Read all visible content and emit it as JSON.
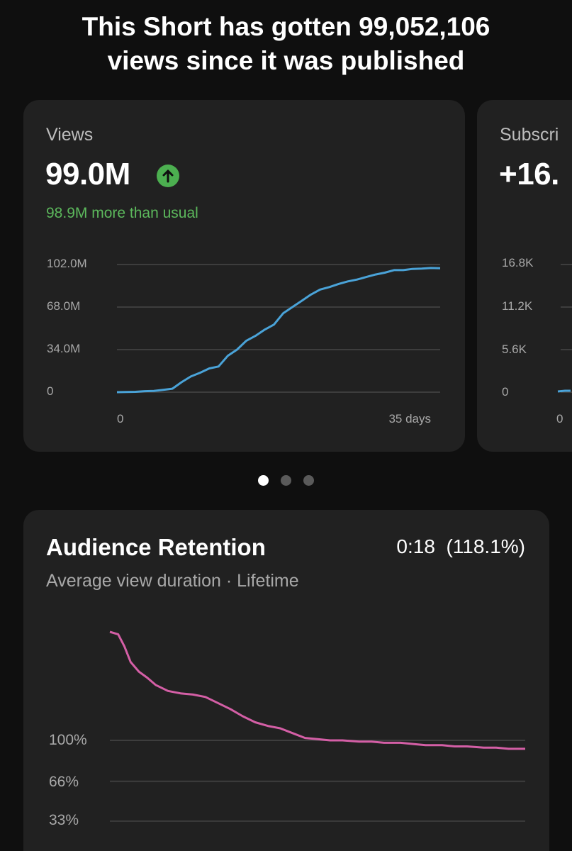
{
  "headline": {
    "line1": "This Short has gotten 99,052,106",
    "line2": "views since it was published"
  },
  "views_card": {
    "label": "Views",
    "value": "99.0M",
    "trend_icon": "arrow-up-icon",
    "comparison": "98.9M more than usual",
    "accent_color": "#4caf50"
  },
  "subscribers_card": {
    "label": "Subscri",
    "value": "+16.",
    "y_ticks": [
      "16.8K",
      "11.2K",
      "5.6K",
      "0"
    ],
    "x_start": "0"
  },
  "carousel": {
    "pages": 3,
    "active_index": 0
  },
  "retention_card": {
    "title": "Audience Retention",
    "value": "0:18  (118.1%)",
    "subtitle": "Average view duration · Lifetime",
    "y_ticks": [
      "100%",
      "66%",
      "33%"
    ]
  },
  "chart_data": [
    {
      "type": "line",
      "y_tick_labels": [
        "102.0M",
        "68.0M",
        "34.0M",
        "0"
      ],
      "y_ticks": [
        102,
        68,
        34,
        0
      ],
      "x_tick_labels": [
        "0",
        "35 days"
      ],
      "ylim": [
        0,
        102
      ],
      "xlim": [
        0,
        35
      ],
      "grid": true,
      "color": "#4aa3d8",
      "series": [
        {
          "x": [
            0,
            2,
            3,
            4,
            5,
            6,
            7,
            8,
            9,
            10,
            11,
            12,
            13,
            14,
            15,
            16,
            17,
            18,
            19,
            20,
            21,
            22,
            23,
            24,
            25,
            26,
            27,
            28,
            29,
            30,
            31,
            32,
            33,
            34,
            35
          ],
          "values": [
            0,
            0.3,
            0.8,
            1,
            1.8,
            2.8,
            8,
            12.5,
            15.5,
            19,
            20.5,
            29,
            34,
            41,
            45,
            50,
            54,
            63,
            68,
            73,
            78,
            82,
            84,
            86.5,
            88.5,
            90,
            92,
            94,
            95.5,
            97.5,
            97.5,
            98.5,
            98.7,
            99.2,
            99
          ]
        }
      ]
    },
    {
      "type": "line",
      "y_tick_labels": [
        "100%",
        "66%",
        "33%"
      ],
      "y_ticks": [
        100,
        66,
        33
      ],
      "grid": true,
      "color": "#d45fa6",
      "series": [
        {
          "x": [
            0,
            0.02,
            0.035,
            0.05,
            0.07,
            0.09,
            0.11,
            0.14,
            0.17,
            0.2,
            0.23,
            0.26,
            0.29,
            0.32,
            0.35,
            0.38,
            0.41,
            0.44,
            0.47,
            0.5,
            0.53,
            0.56,
            0.6,
            0.63,
            0.66,
            0.7,
            0.73,
            0.76,
            0.8,
            0.83,
            0.86,
            0.9,
            0.93,
            0.96,
            1.0
          ],
          "values": [
            190,
            188,
            178,
            165,
            157,
            152,
            146,
            141,
            139,
            138,
            136,
            131,
            126,
            120,
            115,
            112,
            110,
            106,
            102,
            101,
            100,
            100,
            99,
            99,
            98,
            98,
            97,
            96,
            96,
            95,
            95,
            94,
            94,
            93,
            93
          ]
        }
      ]
    }
  ]
}
